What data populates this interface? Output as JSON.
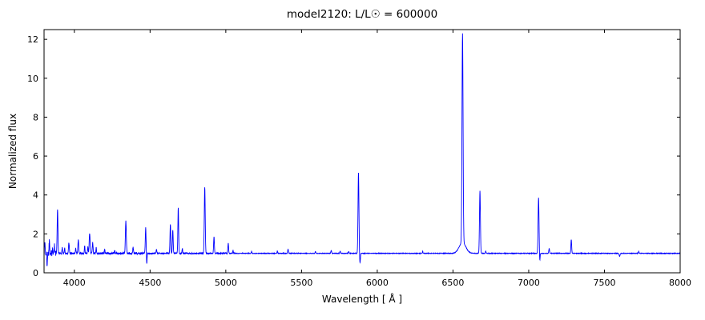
{
  "chart_data": {
    "type": "line",
    "title": "model2120: L/L☉ = 600000",
    "xlabel": "Wavelength [ Å ]",
    "ylabel": "Normalized flux",
    "xlim": [
      3800,
      8000
    ],
    "ylim": [
      0,
      12.5
    ],
    "x_ticks": [
      4000,
      4500,
      5000,
      5500,
      6000,
      6500,
      7000,
      7500,
      8000
    ],
    "y_ticks": [
      0,
      2,
      4,
      6,
      8,
      10,
      12
    ],
    "line_color": "#0000ff",
    "grid": false,
    "legend": "none",
    "continuum": 1.0,
    "sample_step": 1,
    "noise_bands": [
      {
        "below": 3880,
        "amp": 0.17
      },
      {
        "below": 4500,
        "amp": 0.05
      },
      {
        "below": 5060,
        "amp": 0.03
      },
      {
        "below": 8001,
        "amp": 0.015
      }
    ],
    "features": [
      {
        "wl": 3805,
        "peak": 1.6,
        "width": 2
      },
      {
        "wl": 3820,
        "peak": 0.45,
        "width": 2
      },
      {
        "wl": 3835,
        "peak": 1.7,
        "width": 2
      },
      {
        "wl": 3856,
        "peak": 1.35,
        "width": 2
      },
      {
        "wl": 3868,
        "peak": 1.45,
        "width": 2
      },
      {
        "wl": 3889,
        "peak": 3.3,
        "width": 2.5
      },
      {
        "wl": 3920,
        "peak": 1.3,
        "width": 2
      },
      {
        "wl": 3936,
        "peak": 1.25,
        "width": 2
      },
      {
        "wl": 3964,
        "peak": 1.55,
        "width": 2.5
      },
      {
        "wl": 4009,
        "peak": 1.25,
        "width": 2
      },
      {
        "wl": 4026,
        "peak": 1.7,
        "width": 2.5
      },
      {
        "wl": 4068,
        "peak": 1.4,
        "width": 2
      },
      {
        "wl": 4089,
        "peak": 1.35,
        "width": 2
      },
      {
        "wl": 4101,
        "peak": 2.05,
        "width": 3
      },
      {
        "wl": 4121,
        "peak": 1.55,
        "width": 2.5
      },
      {
        "wl": 4144,
        "peak": 1.3,
        "width": 2
      },
      {
        "wl": 4200,
        "peak": 1.2,
        "width": 2
      },
      {
        "wl": 4267,
        "peak": 1.15,
        "width": 2
      },
      {
        "wl": 4340,
        "peak": 2.65,
        "width": 3
      },
      {
        "wl": 4388,
        "peak": 1.3,
        "width": 2.5
      },
      {
        "wl": 4471,
        "peak": 2.3,
        "width": 2.5
      },
      {
        "wl": 4478,
        "peak": 0.45,
        "width": 2
      },
      {
        "wl": 4542,
        "peak": 1.2,
        "width": 2
      },
      {
        "wl": 4634,
        "peak": 2.5,
        "width": 2.5
      },
      {
        "wl": 4650,
        "peak": 2.2,
        "width": 2.5
      },
      {
        "wl": 4686,
        "peak": 3.35,
        "width": 2.5
      },
      {
        "wl": 4713,
        "peak": 1.25,
        "width": 2
      },
      {
        "wl": 4861,
        "peak": 4.4,
        "width": 3
      },
      {
        "wl": 4922,
        "peak": 1.85,
        "width": 2.5
      },
      {
        "wl": 5016,
        "peak": 1.5,
        "width": 2.5
      },
      {
        "wl": 5048,
        "peak": 1.15,
        "width": 2
      },
      {
        "wl": 5170,
        "peak": 1.1,
        "width": 2
      },
      {
        "wl": 5340,
        "peak": 1.12,
        "width": 2
      },
      {
        "wl": 5411,
        "peak": 1.2,
        "width": 2.5
      },
      {
        "wl": 5592,
        "peak": 1.1,
        "width": 2
      },
      {
        "wl": 5696,
        "peak": 1.15,
        "width": 2.5
      },
      {
        "wl": 5755,
        "peak": 1.12,
        "width": 2
      },
      {
        "wl": 5812,
        "peak": 1.1,
        "width": 2
      },
      {
        "wl": 5876,
        "peak": 5.15,
        "width": 3
      },
      {
        "wl": 5886,
        "peak": 0.5,
        "width": 2.5
      },
      {
        "wl": 6300,
        "peak": 1.1,
        "width": 2
      },
      {
        "wl": 6563,
        "peak": 11.75,
        "width": 3.5
      },
      {
        "wl": 6563,
        "peak": 1.55,
        "width": 22
      },
      {
        "wl": 6678,
        "peak": 4.2,
        "width": 3
      },
      {
        "wl": 6716,
        "peak": 1.12,
        "width": 2
      },
      {
        "wl": 7065,
        "peak": 3.85,
        "width": 3
      },
      {
        "wl": 7073,
        "peak": 0.6,
        "width": 2
      },
      {
        "wl": 7135,
        "peak": 1.25,
        "width": 2.5
      },
      {
        "wl": 7281,
        "peak": 1.7,
        "width": 2.5
      },
      {
        "wl": 7600,
        "peak": 0.85,
        "width": 3
      },
      {
        "wl": 7726,
        "peak": 1.1,
        "width": 2
      }
    ]
  }
}
